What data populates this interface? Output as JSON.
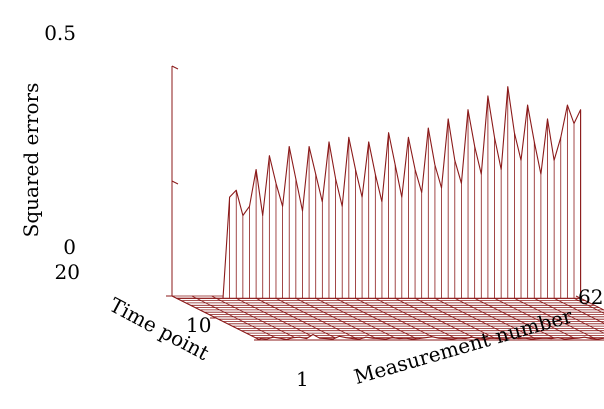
{
  "chart_data": {
    "type": "surface-3d",
    "title": "",
    "colors": {
      "mesh": "#8b1a1a",
      "face": "#ffffff"
    },
    "axes": {
      "x": {
        "label": "Measurement number",
        "min": 1,
        "max": 62,
        "ticks": [
          "62"
        ]
      },
      "y": {
        "label": "Time point",
        "min": 1,
        "max": 20,
        "ticks": [
          "1",
          "10",
          "20"
        ]
      },
      "z": {
        "label": "Squared errors",
        "min": 0,
        "max": 0.5,
        "ticks": [
          "0",
          "0.5"
        ]
      }
    },
    "time_point_values": [
      1,
      19
    ],
    "series": [
      {
        "time_point": 1,
        "values": [
          0.003,
          0.002,
          0.006,
          0.004,
          0.001,
          0.005,
          0.006,
          0.003,
          0.012,
          0.004,
          0.003,
          0.002,
          0.008,
          0.005,
          0.003,
          0.002,
          0.006,
          0.004,
          0.003,
          0.002,
          0.005,
          0.003,
          0.004,
          0.002,
          0.003,
          0.005,
          0.007,
          0.004,
          0.003,
          0.002,
          0.004,
          0.003,
          0.006,
          0.003,
          0.002,
          0.004,
          0.003,
          0.002,
          0.005,
          0.003,
          0.004,
          0.002,
          0.003,
          0.004,
          0.003,
          0.005,
          0.002,
          0.003,
          0.004,
          0.006,
          0.003,
          0.002,
          0.004,
          0.003,
          0.005,
          0.004,
          0.003,
          0.002,
          0.004,
          0.003,
          0.002,
          0.003
        ]
      },
      {
        "time_point": 19,
        "values": [
          0.0,
          0.0,
          0.0,
          0.0,
          0.0,
          0.0,
          0.0,
          0.0,
          0.22,
          0.235,
          0.18,
          0.2,
          0.28,
          0.18,
          0.31,
          0.25,
          0.2,
          0.33,
          0.26,
          0.19,
          0.33,
          0.27,
          0.21,
          0.34,
          0.26,
          0.2,
          0.35,
          0.28,
          0.22,
          0.34,
          0.27,
          0.21,
          0.36,
          0.29,
          0.22,
          0.35,
          0.28,
          0.23,
          0.37,
          0.29,
          0.24,
          0.39,
          0.3,
          0.25,
          0.41,
          0.33,
          0.27,
          0.44,
          0.35,
          0.28,
          0.46,
          0.36,
          0.3,
          0.42,
          0.34,
          0.27,
          0.39,
          0.3,
          0.35,
          0.42,
          0.38,
          0.41
        ]
      }
    ]
  }
}
